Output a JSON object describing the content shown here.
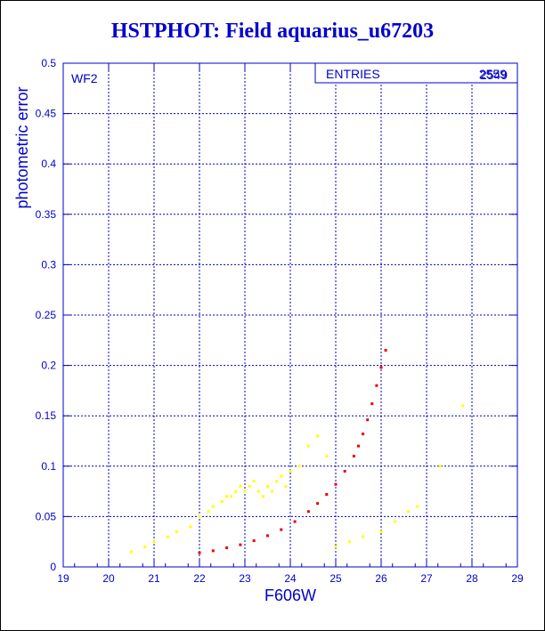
{
  "chart_data": {
    "type": "scatter",
    "title": "HSTPHOT: Field aquarius_u67203",
    "xlabel": "F606W",
    "ylabel": "photometric error",
    "xlim": [
      19,
      29
    ],
    "ylim": [
      0,
      0.5
    ],
    "xticks": [
      "19",
      "20",
      "21",
      "22",
      "23",
      "24",
      "25",
      "26",
      "27",
      "28",
      "29"
    ],
    "yticks": [
      "0",
      "0.05",
      "0.1",
      "0.15",
      "0.2",
      "0.25",
      "0.3",
      "0.35",
      "0.4",
      "0.45",
      "0.5"
    ],
    "grid": true,
    "panel_label": "WF2",
    "stats_box": {
      "label": "ENTRIES",
      "values": [
        "2559",
        "2549"
      ]
    },
    "colors": {
      "axes": "#0000cc",
      "title": "#0000cc",
      "series_yellow": "#ffff00",
      "series_red": "#ee0000"
    },
    "series": [
      {
        "color": "#ffff00",
        "x": [
          20.5,
          20.8,
          21.0,
          21.3,
          21.5,
          21.8,
          22.0,
          22.2,
          22.3,
          22.5,
          22.6,
          22.7,
          22.8,
          22.9,
          23.0,
          23.1,
          23.2,
          23.3,
          23.4,
          23.5,
          23.6,
          23.7,
          23.8,
          23.9,
          24.0,
          24.2,
          24.4,
          24.6,
          24.8,
          25.0,
          25.3,
          25.6,
          26.0,
          26.3,
          26.6,
          26.8,
          27.3,
          27.8
        ],
        "y": [
          0.015,
          0.02,
          0.025,
          0.03,
          0.035,
          0.04,
          0.05,
          0.055,
          0.06,
          0.065,
          0.07,
          0.07,
          0.075,
          0.08,
          0.075,
          0.08,
          0.085,
          0.075,
          0.07,
          0.08,
          0.075,
          0.085,
          0.09,
          0.08,
          0.095,
          0.1,
          0.12,
          0.13,
          0.11,
          0.02,
          0.025,
          0.03,
          0.035,
          0.045,
          0.055,
          0.06,
          0.1,
          0.16
        ]
      },
      {
        "color": "#ee0000",
        "x": [
          22.0,
          22.3,
          22.6,
          22.9,
          23.2,
          23.5,
          23.8,
          24.1,
          24.4,
          24.6,
          24.8,
          25.0,
          25.2,
          25.4,
          25.5,
          25.6,
          25.7,
          25.8,
          25.9,
          26.0,
          26.1
        ],
        "y": [
          0.014,
          0.016,
          0.019,
          0.022,
          0.026,
          0.031,
          0.037,
          0.045,
          0.055,
          0.063,
          0.072,
          0.082,
          0.095,
          0.11,
          0.12,
          0.132,
          0.146,
          0.162,
          0.18,
          0.198,
          0.215
        ]
      }
    ]
  }
}
